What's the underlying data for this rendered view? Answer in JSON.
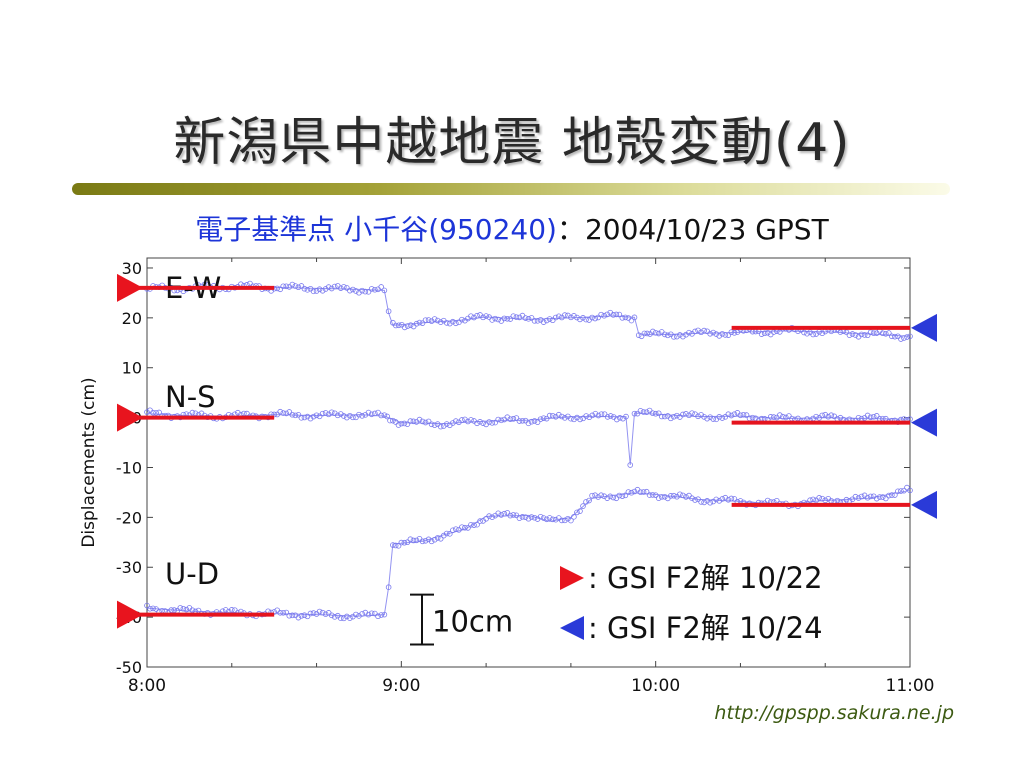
{
  "slide": {
    "title": "新潟県中越地震 地殻変動(4)",
    "subtitle_station": "電子基準点 小千谷(950240)",
    "subtitle_rest": "：2004/10/23 GPST",
    "credit": "http://gpspp.sakura.ne.jp",
    "scale_label": "10cm",
    "legend": [
      {
        "marker": "right-triangle",
        "color": "#e8141e",
        "text": ": GSI F2解 10/22"
      },
      {
        "marker": "left-triangle",
        "color": "#2a3ad8",
        "text": ": GSI F2解 10/24"
      }
    ]
  },
  "chart_data": {
    "type": "scatter",
    "ylabel": "Displacements (cm)",
    "xlabel": "",
    "ylim": [
      -50,
      32
    ],
    "xlim": [
      "8:00",
      "11:00"
    ],
    "x_ticks": [
      "8:00",
      "9:00",
      "10:00",
      "11:00"
    ],
    "y_ticks": [
      30,
      20,
      10,
      0,
      -10,
      -20,
      -30,
      -40,
      -50
    ],
    "grid": false,
    "series": [
      {
        "name": "E-W",
        "color": "#7878ee",
        "x": [
          "8:00",
          "8:10",
          "8:20",
          "8:30",
          "8:40",
          "8:50",
          "8:56",
          "8:57",
          "8:58",
          "9:05",
          "9:15",
          "9:20",
          "9:30",
          "9:40",
          "9:50",
          "9:55",
          "9:56",
          "10:00",
          "10:10",
          "10:20",
          "10:30",
          "10:40",
          "10:50",
          "11:00"
        ],
        "y": [
          25.8,
          26.0,
          26.3,
          26.1,
          25.9,
          25.7,
          25.5,
          21,
          18.5,
          19.0,
          19.6,
          20.2,
          19.7,
          20.0,
          20.4,
          20.1,
          16.8,
          16.6,
          16.9,
          17.1,
          17.4,
          17.2,
          16.8,
          16.3
        ]
      },
      {
        "name": "N-S",
        "color": "#7878ee",
        "x": [
          "8:00",
          "8:10",
          "8:20",
          "8:30",
          "8:40",
          "8:50",
          "8:56",
          "9:00",
          "9:10",
          "9:20",
          "9:30",
          "9:40",
          "9:53",
          "9:54",
          "9:55",
          "10:00",
          "10:10",
          "10:20",
          "10:30",
          "10:40",
          "10:50",
          "11:00"
        ],
        "y": [
          0.8,
          0.4,
          0.3,
          0.6,
          0.4,
          0.6,
          0.3,
          -1.0,
          -1.2,
          -0.7,
          -0.5,
          0.2,
          0.2,
          -9.5,
          0.9,
          0.7,
          0.2,
          0.3,
          -0.2,
          0.0,
          -0.2,
          -0.3
        ]
      },
      {
        "name": "U-D",
        "color": "#7878ee",
        "x": [
          "8:00",
          "8:10",
          "8:20",
          "8:30",
          "8:40",
          "8:50",
          "8:56",
          "8:57",
          "8:58",
          "9:00",
          "9:05",
          "9:10",
          "9:15",
          "9:20",
          "9:30",
          "9:35",
          "9:40",
          "9:45",
          "9:50",
          "9:55",
          "10:00",
          "10:10",
          "10:20",
          "10:30",
          "10:40",
          "10:50",
          "11:00"
        ],
        "y": [
          -38.2,
          -38.8,
          -39.1,
          -39.3,
          -39.5,
          -39.8,
          -39.5,
          -34,
          -25.3,
          -25.2,
          -24.8,
          -23.5,
          -22.4,
          -19.8,
          -19.6,
          -20.8,
          -20.0,
          -16.2,
          -15.6,
          -15.1,
          -15.4,
          -16.4,
          -16.8,
          -17.4,
          -16.6,
          -16.2,
          -14.6
        ]
      }
    ],
    "reference_lines": [
      {
        "component": "E-W",
        "date": "10/22",
        "y": 26.0,
        "x_range": [
          "8:00",
          "8:30"
        ]
      },
      {
        "component": "E-W",
        "date": "10/24",
        "y": 18.0,
        "x_range": [
          "10:25",
          "11:00"
        ]
      },
      {
        "component": "N-S",
        "date": "10/22",
        "y": 0.0,
        "x_range": [
          "8:00",
          "8:30"
        ]
      },
      {
        "component": "N-S",
        "date": "10/24",
        "y": -1.0,
        "x_range": [
          "10:25",
          "11:00"
        ]
      },
      {
        "component": "U-D",
        "date": "10/22",
        "y": -39.5,
        "x_range": [
          "8:00",
          "8:30"
        ]
      },
      {
        "component": "U-D",
        "date": "10/24",
        "y": -17.5,
        "x_range": [
          "10:25",
          "11:00"
        ]
      }
    ],
    "series_labels": [
      "E-W",
      "N-S",
      "U-D"
    ]
  }
}
